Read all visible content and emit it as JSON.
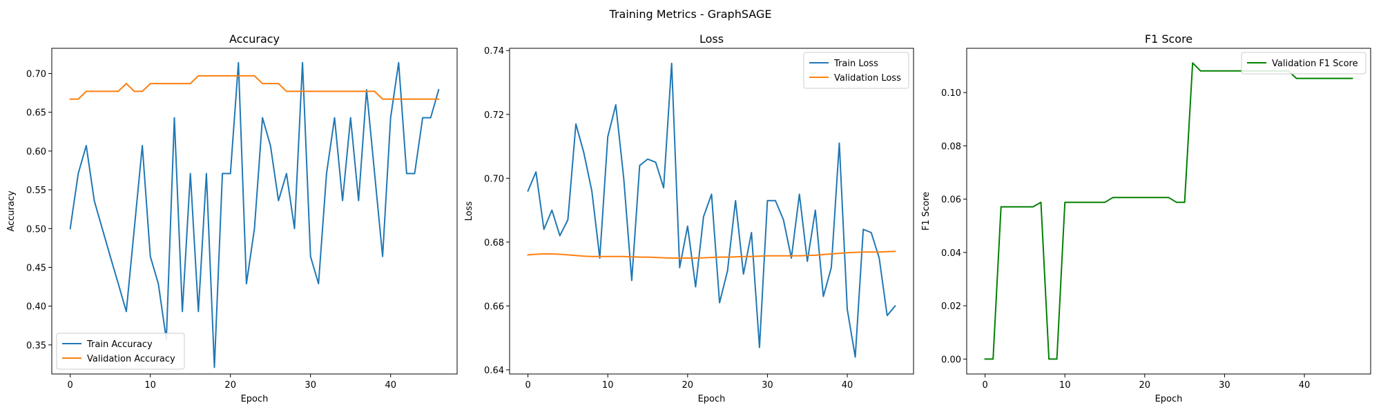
{
  "figure": {
    "suptitle": "Training Metrics - GraphSAGE"
  },
  "chart_data": [
    {
      "type": "line",
      "title": "Accuracy",
      "xlabel": "Epoch",
      "ylabel": "Accuracy",
      "xlim": [
        -2.3,
        48.3
      ],
      "ylim": [
        0.3125,
        0.7325
      ],
      "xticks": [
        0,
        10,
        20,
        30,
        40
      ],
      "xtick_labels": [
        "0",
        "10",
        "20",
        "30",
        "40"
      ],
      "yticks": [
        0.35,
        0.4,
        0.45,
        0.5,
        0.55,
        0.6,
        0.65,
        0.7
      ],
      "ytick_labels": [
        "0.35",
        "0.40",
        "0.45",
        "0.50",
        "0.55",
        "0.60",
        "0.65",
        "0.70"
      ],
      "grid": false,
      "legend_loc": "lower-left",
      "x": [
        0,
        1,
        2,
        3,
        4,
        5,
        6,
        7,
        8,
        9,
        10,
        11,
        12,
        13,
        14,
        15,
        16,
        17,
        18,
        19,
        20,
        21,
        22,
        23,
        24,
        25,
        26,
        27,
        28,
        29,
        30,
        31,
        32,
        33,
        34,
        35,
        36,
        37,
        38,
        39,
        40,
        41,
        42,
        43,
        44,
        45,
        46
      ],
      "series": [
        {
          "name": "Train Accuracy",
          "color": "#1f77b4",
          "values": [
            0.5,
            0.571,
            0.607,
            0.536,
            0.5,
            0.464,
            0.429,
            0.393,
            0.5,
            0.607,
            0.464,
            0.429,
            0.357,
            0.643,
            0.393,
            0.571,
            0.393,
            0.571,
            0.321,
            0.571,
            0.571,
            0.714,
            0.429,
            0.5,
            0.643,
            0.607,
            0.536,
            0.571,
            0.5,
            0.714,
            0.464,
            0.429,
            0.571,
            0.643,
            0.536,
            0.643,
            0.536,
            0.679,
            0.571,
            0.464,
            0.643,
            0.714,
            0.571,
            0.571,
            0.643,
            0.643,
            0.679
          ]
        },
        {
          "name": "Validation Accuracy",
          "color": "#ff7f0e",
          "values": [
            0.667,
            0.667,
            0.677,
            0.677,
            0.677,
            0.677,
            0.677,
            0.687,
            0.677,
            0.677,
            0.687,
            0.687,
            0.687,
            0.687,
            0.687,
            0.687,
            0.697,
            0.697,
            0.697,
            0.697,
            0.697,
            0.697,
            0.697,
            0.697,
            0.687,
            0.687,
            0.687,
            0.677,
            0.677,
            0.677,
            0.677,
            0.677,
            0.677,
            0.677,
            0.677,
            0.677,
            0.677,
            0.677,
            0.677,
            0.667,
            0.667,
            0.667,
            0.667,
            0.667,
            0.667,
            0.667,
            0.667
          ]
        }
      ]
    },
    {
      "type": "line",
      "title": "Loss",
      "xlabel": "Epoch",
      "ylabel": "Loss",
      "xlim": [
        -2.3,
        48.3
      ],
      "ylim": [
        0.6387,
        0.7407
      ],
      "xticks": [
        0,
        10,
        20,
        30,
        40
      ],
      "xtick_labels": [
        "0",
        "10",
        "20",
        "30",
        "40"
      ],
      "yticks": [
        0.64,
        0.66,
        0.68,
        0.7,
        0.72,
        0.74
      ],
      "ytick_labels": [
        "0.64",
        "0.66",
        "0.68",
        "0.70",
        "0.72",
        "0.74"
      ],
      "grid": false,
      "legend_loc": "upper-right",
      "x": [
        0,
        1,
        2,
        3,
        4,
        5,
        6,
        7,
        8,
        9,
        10,
        11,
        12,
        13,
        14,
        15,
        16,
        17,
        18,
        19,
        20,
        21,
        22,
        23,
        24,
        25,
        26,
        27,
        28,
        29,
        30,
        31,
        32,
        33,
        34,
        35,
        36,
        37,
        38,
        39,
        40,
        41,
        42,
        43,
        44,
        45,
        46
      ],
      "series": [
        {
          "name": "Train Loss",
          "color": "#1f77b4",
          "values": [
            0.696,
            0.702,
            0.684,
            0.69,
            0.682,
            0.687,
            0.717,
            0.708,
            0.696,
            0.675,
            0.713,
            0.723,
            0.7,
            0.668,
            0.704,
            0.706,
            0.705,
            0.697,
            0.736,
            0.672,
            0.685,
            0.666,
            0.688,
            0.695,
            0.661,
            0.671,
            0.693,
            0.67,
            0.683,
            0.647,
            0.693,
            0.693,
            0.687,
            0.675,
            0.695,
            0.674,
            0.69,
            0.663,
            0.672,
            0.711,
            0.659,
            0.644,
            0.684,
            0.683,
            0.675,
            0.657,
            0.66
          ]
        },
        {
          "name": "Validation Loss",
          "color": "#ff7f0e",
          "values": [
            0.676,
            0.6762,
            0.6763,
            0.6763,
            0.6762,
            0.676,
            0.6758,
            0.6756,
            0.6755,
            0.6755,
            0.6755,
            0.6755,
            0.6755,
            0.6754,
            0.6753,
            0.6753,
            0.6752,
            0.6751,
            0.675,
            0.675,
            0.675,
            0.675,
            0.6751,
            0.6752,
            0.6753,
            0.6753,
            0.6754,
            0.6755,
            0.6755,
            0.6756,
            0.6757,
            0.6757,
            0.6757,
            0.6757,
            0.6757,
            0.6758,
            0.6759,
            0.6761,
            0.6763,
            0.6765,
            0.6767,
            0.6768,
            0.6769,
            0.6769,
            0.6769,
            0.677,
            0.6771
          ]
        }
      ]
    },
    {
      "type": "line",
      "title": "F1 Score",
      "xlabel": "Epoch",
      "ylabel": "F1 Score",
      "xlim": [
        -2.3,
        48.3
      ],
      "ylim": [
        -0.0056,
        0.1166
      ],
      "xticks": [
        0,
        10,
        20,
        30,
        40
      ],
      "xtick_labels": [
        "0",
        "10",
        "20",
        "30",
        "40"
      ],
      "yticks": [
        0.0,
        0.02,
        0.04,
        0.06,
        0.08,
        0.1
      ],
      "ytick_labels": [
        "0.00",
        "0.02",
        "0.04",
        "0.06",
        "0.08",
        "0.10"
      ],
      "grid": false,
      "legend_loc": "upper-right",
      "x": [
        0,
        1,
        2,
        3,
        4,
        5,
        6,
        7,
        8,
        9,
        10,
        11,
        12,
        13,
        14,
        15,
        16,
        17,
        18,
        19,
        20,
        21,
        22,
        23,
        24,
        25,
        26,
        27,
        28,
        29,
        30,
        31,
        32,
        33,
        34,
        35,
        36,
        37,
        38,
        39,
        40,
        41,
        42,
        43,
        44,
        45,
        46
      ],
      "series": [
        {
          "name": "Validation F1 Score",
          "color": "#008000",
          "values": [
            0.0,
            0.0,
            0.0571,
            0.0571,
            0.0571,
            0.0571,
            0.0571,
            0.0588,
            0.0,
            0.0,
            0.0588,
            0.0588,
            0.0588,
            0.0588,
            0.0588,
            0.0588,
            0.0606,
            0.0606,
            0.0606,
            0.0606,
            0.0606,
            0.0606,
            0.0606,
            0.0606,
            0.0588,
            0.0588,
            0.1111,
            0.1081,
            0.1081,
            0.1081,
            0.1081,
            0.1081,
            0.1081,
            0.1081,
            0.1081,
            0.1081,
            0.1081,
            0.1081,
            0.1081,
            0.1053,
            0.1053,
            0.1053,
            0.1053,
            0.1053,
            0.1053,
            0.1053,
            0.1053
          ]
        }
      ]
    }
  ]
}
